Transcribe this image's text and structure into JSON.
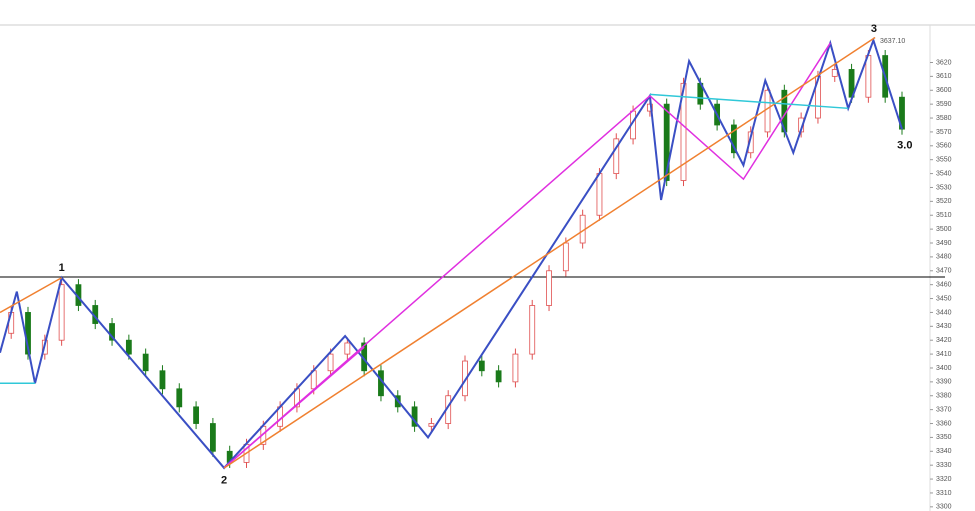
{
  "chart_data": {
    "type": "candlestick",
    "x": [
      2,
      5,
      8,
      11,
      14,
      17,
      20,
      23,
      26,
      29,
      32,
      35,
      38,
      41,
      44,
      47,
      50,
      53,
      56,
      59,
      62,
      65,
      68,
      71,
      74,
      77,
      80,
      83,
      86,
      89,
      92,
      95,
      98,
      101,
      104,
      107,
      110,
      113,
      116,
      119,
      122,
      125,
      128,
      131,
      134,
      137,
      140,
      143,
      146,
      149,
      152,
      155,
      158,
      161
    ],
    "open": [
      3425,
      3440,
      3410,
      3420,
      3460,
      3445,
      3432,
      3420,
      3410,
      3398,
      3385,
      3372,
      3360,
      3340,
      3332,
      3345,
      3358,
      3372,
      3385,
      3398,
      3410,
      3418,
      3398,
      3380,
      3372,
      3358,
      3360,
      3380,
      3405,
      3398,
      3390,
      3410,
      3445,
      3470,
      3490,
      3510,
      3540,
      3565,
      3585,
      3590,
      3535,
      3605,
      3590,
      3575,
      3555,
      3570,
      3600,
      3570,
      3580,
      3610,
      3615,
      3595,
      3625,
      3595
    ],
    "high": [
      3444,
      3444,
      3424,
      3464,
      3464,
      3449,
      3436,
      3424,
      3414,
      3402,
      3389,
      3376,
      3364,
      3344,
      3349,
      3362,
      3376,
      3389,
      3402,
      3414,
      3422,
      3422,
      3402,
      3384,
      3376,
      3364,
      3384,
      3409,
      3409,
      3402,
      3414,
      3449,
      3474,
      3494,
      3514,
      3544,
      3569,
      3589,
      3594,
      3594,
      3609,
      3609,
      3594,
      3579,
      3574,
      3604,
      3604,
      3584,
      3614,
      3619,
      3619,
      3629,
      3629,
      3599
    ],
    "low": [
      3421,
      3406,
      3406,
      3416,
      3441,
      3428,
      3416,
      3406,
      3394,
      3381,
      3368,
      3356,
      3336,
      3328,
      3328,
      3341,
      3354,
      3368,
      3381,
      3394,
      3406,
      3394,
      3376,
      3368,
      3354,
      3354,
      3356,
      3376,
      3394,
      3386,
      3386,
      3406,
      3441,
      3466,
      3486,
      3506,
      3536,
      3561,
      3581,
      3531,
      3531,
      3586,
      3571,
      3551,
      3551,
      3566,
      3566,
      3566,
      3576,
      3606,
      3591,
      3591,
      3591,
      3568
    ],
    "close": [
      3440,
      3410,
      3420,
      3460,
      3445,
      3432,
      3420,
      3410,
      3398,
      3385,
      3372,
      3360,
      3340,
      3332,
      3345,
      3358,
      3372,
      3385,
      3398,
      3410,
      3418,
      3398,
      3380,
      3372,
      3358,
      3360,
      3380,
      3405,
      3398,
      3390,
      3410,
      3445,
      3470,
      3490,
      3510,
      3540,
      3565,
      3585,
      3590,
      3535,
      3605,
      3590,
      3575,
      3555,
      3570,
      3600,
      3570,
      3580,
      3610,
      3615,
      3595,
      3625,
      3595,
      3572
    ],
    "up_color": "#e05050",
    "down_color": "#1a7a1a",
    "overlays": [
      {
        "color": "#3a4fc4",
        "x": [
          0,
          3,
          6.25,
          11,
          40,
          61.6,
          76.4,
          116,
          118,
          123,
          132.7,
          136.6,
          141.6,
          148.2,
          151.4,
          155.9,
          161
        ],
        "values": [
          3411,
          3455,
          3389,
          3465,
          3328,
          3423,
          3350,
          3596,
          3521,
          3621,
          3546,
          3607,
          3555,
          3634,
          3587,
          3636,
          3572
        ]
      },
      {
        "color": "#e030e0",
        "x": [
          40,
          116,
          132.7,
          148.2
        ],
        "values": [
          3328,
          3596,
          3536,
          3634
        ]
      },
      {
        "color": "#e030e0",
        "x": [
          40,
          65
        ],
        "values": [
          3328,
          3415
        ]
      },
      {
        "color": "#f08030",
        "x": [
          0,
          11
        ],
        "values": [
          3440,
          3465
        ]
      },
      {
        "color": "#f08030",
        "x": [
          40,
          156.2
        ],
        "values": [
          3328,
          3638
        ]
      },
      {
        "color": "#30c8d8",
        "x": [
          0,
          6.25
        ],
        "values": [
          3389,
          3389
        ]
      },
      {
        "color": "#30c8d8",
        "x": [
          116,
          151.4
        ],
        "values": [
          3597,
          3587
        ]
      }
    ],
    "hline": 3465.5,
    "hline_color": "#000000",
    "annotations": [
      {
        "text": "1",
        "x": 11,
        "y": 3472
      },
      {
        "text": "2",
        "x": 40,
        "y": 3319
      },
      {
        "text": "3",
        "x": 156,
        "y": 3644
      },
      {
        "text": "3.0",
        "x": 161.5,
        "y": 3560
      }
    ],
    "price_label": "3637.10",
    "xlim": [
      0,
      166
    ],
    "ylim": [
      3297,
      3647
    ],
    "yticks": [
      3300,
      3310,
      3320,
      3330,
      3340,
      3350,
      3360,
      3370,
      3380,
      3390,
      3400,
      3410,
      3420,
      3430,
      3440,
      3450,
      3460,
      3470,
      3480,
      3490,
      3500,
      3510,
      3520,
      3530,
      3540,
      3550,
      3560,
      3570,
      3580,
      3590,
      3600,
      3610,
      3620
    ]
  }
}
